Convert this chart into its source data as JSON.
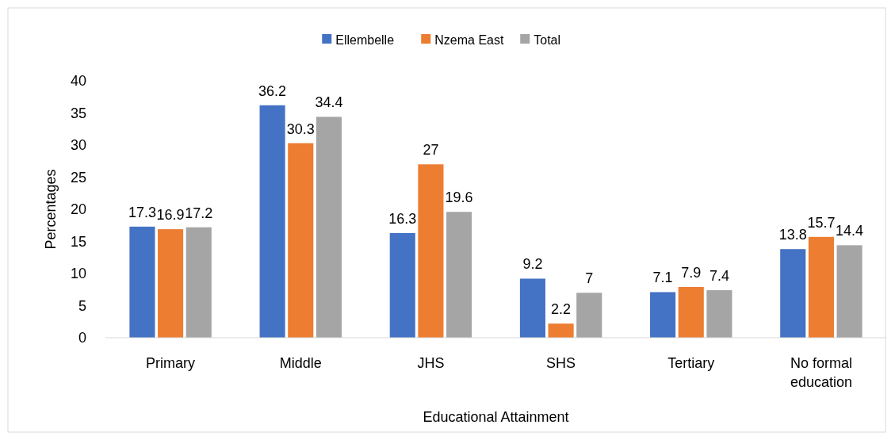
{
  "chart_data": {
    "type": "bar",
    "xlabel": "Educational Attainment",
    "ylabel": "Percentages",
    "categories": [
      "Primary",
      "Middle",
      "JHS",
      "SHS",
      "Tertiary",
      "No formal education"
    ],
    "series": [
      {
        "name": "Ellembelle",
        "color": "#4472c4",
        "values": [
          17.3,
          36.2,
          16.3,
          9.2,
          7.1,
          13.8
        ]
      },
      {
        "name": "Nzema East",
        "color": "#ed7d31",
        "values": [
          16.9,
          30.3,
          27,
          2.2,
          7.9,
          15.7
        ]
      },
      {
        "name": "Total",
        "color": "#a5a5a5",
        "values": [
          17.2,
          34.4,
          19.6,
          7,
          7.4,
          14.4
        ]
      }
    ],
    "ylim": [
      0,
      40
    ],
    "yticks": [
      0,
      5,
      10,
      15,
      20,
      25,
      30,
      35,
      40
    ],
    "grid": false,
    "legend": "top",
    "data_labels": true
  }
}
